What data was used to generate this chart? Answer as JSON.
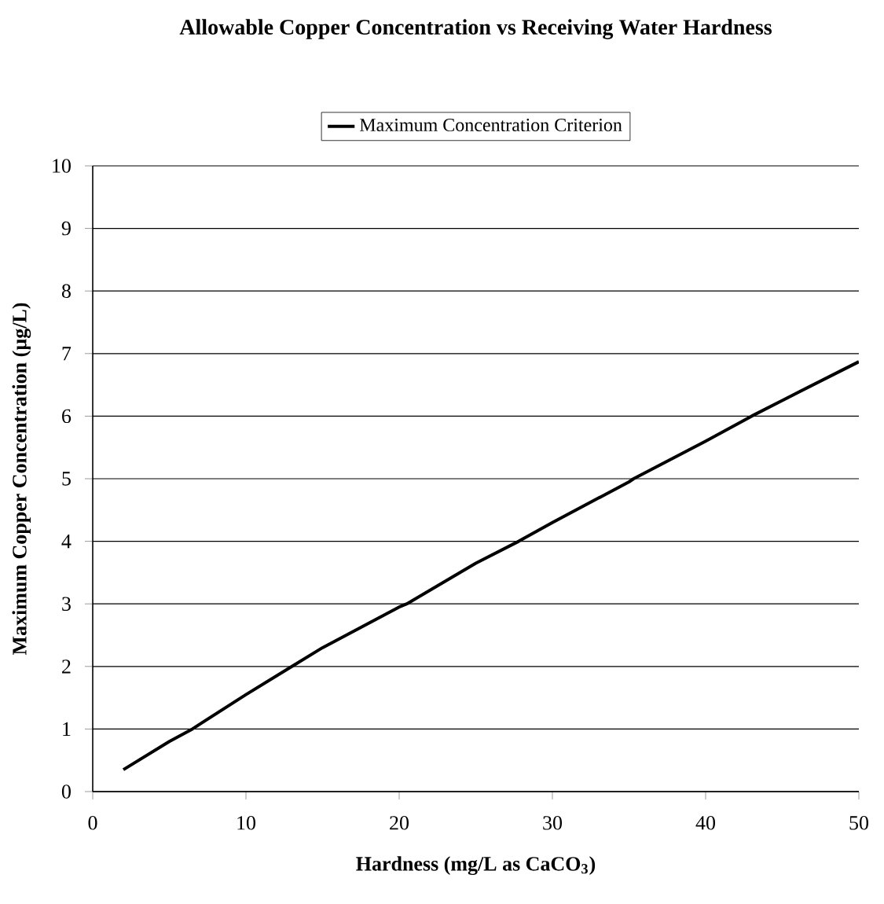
{
  "chart_data": {
    "type": "line",
    "title": "Allowable Copper Concentration vs Receiving Water Hardness",
    "xlabel": "Hardness (mg/L as CaCO$_{3}$)",
    "ylabel": "Maximum Copper Concentration (µg/L)",
    "x": [
      2,
      5,
      6.5,
      10,
      13,
      15,
      20,
      20.5,
      25,
      27.8,
      30,
      35,
      35.3,
      40,
      43,
      45,
      50
    ],
    "series": [
      {
        "name": "Maximum Concentration Criterion",
        "color": "#000000",
        "values": [
          0.35,
          0.8,
          1.0,
          1.55,
          2.0,
          2.3,
          2.95,
          3.0,
          3.65,
          4.0,
          4.3,
          4.95,
          5.0,
          5.6,
          6.0,
          6.25,
          6.87
        ]
      }
    ],
    "xlim": [
      0,
      50
    ],
    "xticks": [
      0,
      10,
      20,
      30,
      40,
      50
    ],
    "ylim": [
      0,
      10
    ],
    "yticks": [
      0,
      1,
      2,
      3,
      4,
      5,
      6,
      7,
      8,
      9,
      10
    ],
    "grid": "y",
    "legend": "top",
    "marker": "none",
    "line_style": "solid"
  }
}
